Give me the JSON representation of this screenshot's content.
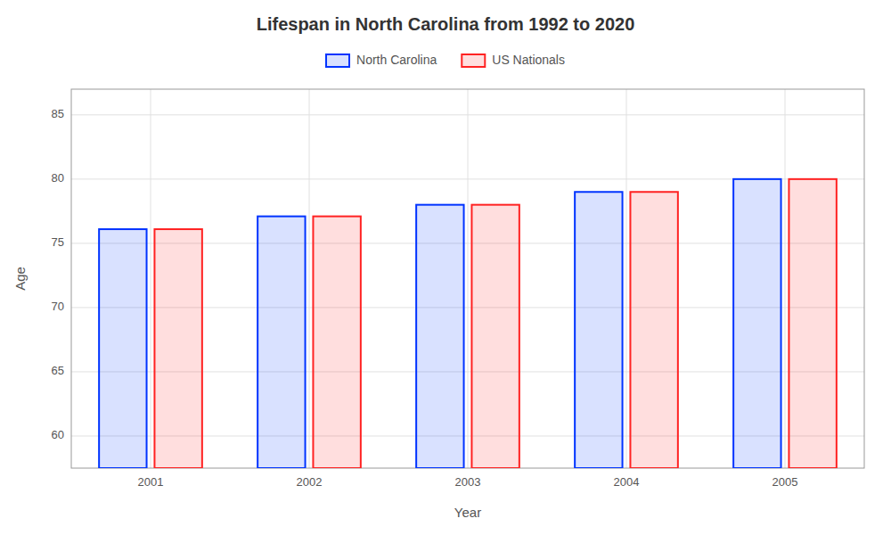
{
  "chart_data": {
    "type": "bar",
    "title": "Lifespan in North Carolina from 1992 to 2020",
    "x_label": "Year",
    "y_label": "Age",
    "categories": [
      "2001",
      "2002",
      "2003",
      "2004",
      "2005"
    ],
    "series": [
      {
        "name": "North Carolina",
        "color": "#0033ff",
        "values": [
          76.1,
          77.1,
          78.0,
          79.0,
          80.0
        ]
      },
      {
        "name": "US Nationals",
        "color": "#ff2222",
        "values": [
          76.1,
          77.1,
          78.0,
          79.0,
          80.0
        ]
      }
    ],
    "ylim": [
      57.5,
      87
    ],
    "yticks": [
      60,
      65,
      70,
      75,
      80,
      85
    ],
    "grid": true,
    "legend": "top"
  }
}
